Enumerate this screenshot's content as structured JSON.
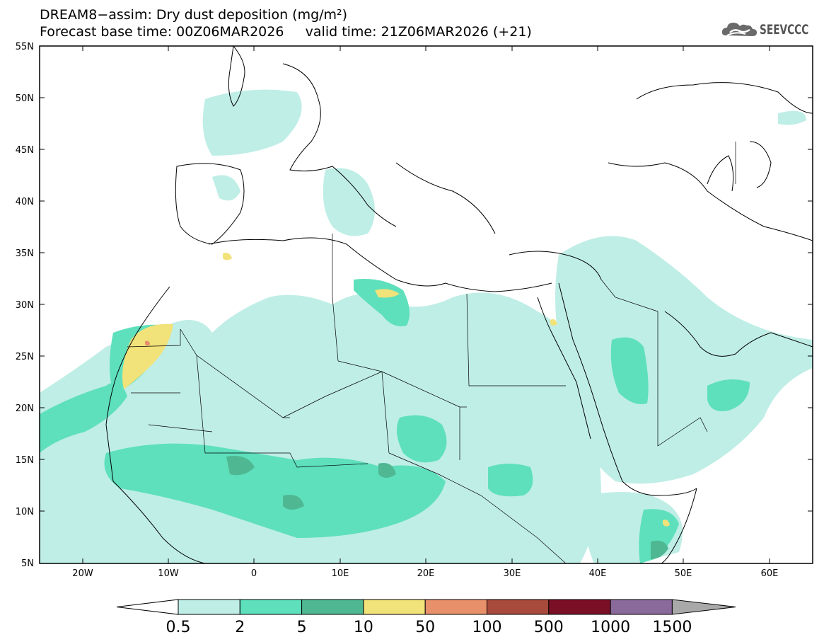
{
  "title": {
    "line1": "DREAM8−assim: Dry dust deposition (mg/m²)",
    "line2": "Forecast base time: 00Z06MAR2026     valid time: 21Z06MAR2026 (+21)"
  },
  "logo": {
    "text": "SEEVCCC",
    "icon": "cloud-logo-icon"
  },
  "map": {
    "lon_range": [
      -25,
      65
    ],
    "lat_range": [
      5,
      55
    ],
    "lat_ticks": [
      "55N",
      "50N",
      "45N",
      "40N",
      "35N",
      "30N",
      "25N",
      "20N",
      "15N",
      "10N",
      "5N"
    ],
    "lon_ticks": [
      "20W",
      "10W",
      "0",
      "10E",
      "20E",
      "30E",
      "40E",
      "50E",
      "60E"
    ],
    "background": "#ffffff"
  },
  "legend": {
    "levels": [
      "0.5",
      "2",
      "5",
      "10",
      "50",
      "100",
      "500",
      "1000",
      "1500"
    ],
    "colors": [
      "#bfeee6",
      "#5ee0bc",
      "#4fb892",
      "#f2e27a",
      "#e8906a",
      "#a84a3c",
      "#7a0f26",
      "#8a6a9a",
      "#a9a9a9"
    ]
  }
}
